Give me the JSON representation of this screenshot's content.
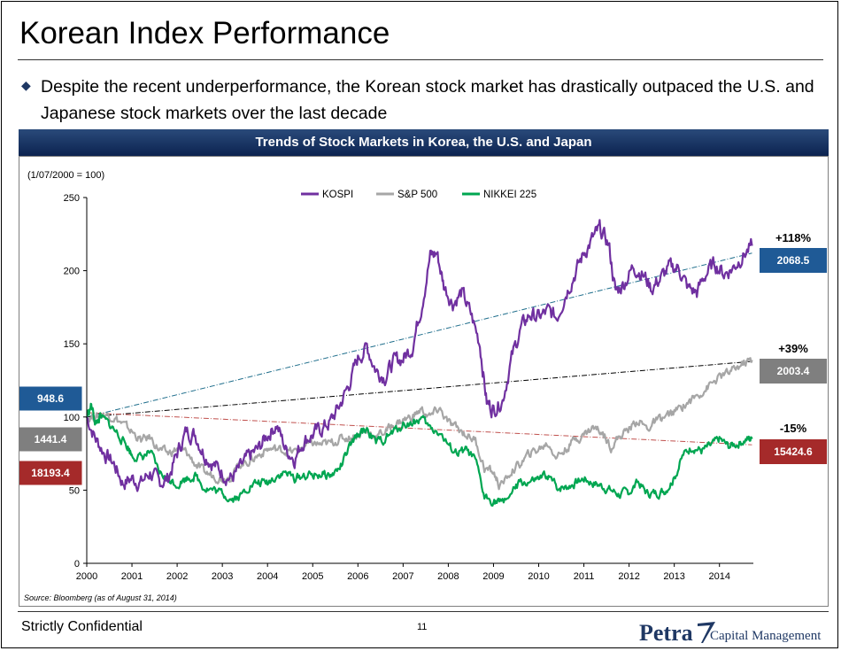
{
  "page": {
    "title": "Korean Index Performance",
    "bullet": "Despite the recent underperformance, the Korean stock market has drastically outpaced the U.S. and Japanese stock markets over the last decade",
    "banner": "Trends of Stock Markets in Korea, the U.S. and Japan",
    "footer": "Strictly Confidential",
    "page_number": "11",
    "logo_main": "Petra",
    "logo_sub": "Capital Management"
  },
  "chart_data": {
    "type": "line",
    "title": "Trends of Stock Markets in Korea, the U.S. and Japan",
    "ylabel": "(1/07/2000 = 100)",
    "source": "Source: Bloomberg (as of August 31, 2014)",
    "ylim": [
      0,
      250
    ],
    "yticks": [
      "0",
      "50",
      "100",
      "150",
      "200",
      "250"
    ],
    "xlim": [
      2000,
      2014.75
    ],
    "xticks": [
      "2000",
      "2001",
      "2002",
      "2003",
      "2004",
      "2005",
      "2006",
      "2007",
      "2008",
      "2009",
      "2010",
      "2011",
      "2012",
      "2013",
      "2014"
    ],
    "series": [
      {
        "name": "KOSPI",
        "color": "#7030a0",
        "start_value": "948.6",
        "end_value": "2068.5",
        "change": "+118%",
        "points": [
          [
            2000.0,
            100
          ],
          [
            2000.2,
            85
          ],
          [
            2000.4,
            75
          ],
          [
            2000.6,
            68
          ],
          [
            2000.8,
            55
          ],
          [
            2001.0,
            58
          ],
          [
            2001.2,
            55
          ],
          [
            2001.4,
            62
          ],
          [
            2001.6,
            55
          ],
          [
            2001.8,
            58
          ],
          [
            2002.0,
            75
          ],
          [
            2002.2,
            90
          ],
          [
            2002.4,
            88
          ],
          [
            2002.6,
            75
          ],
          [
            2002.8,
            68
          ],
          [
            2003.0,
            62
          ],
          [
            2003.2,
            58
          ],
          [
            2003.4,
            65
          ],
          [
            2003.6,
            73
          ],
          [
            2003.8,
            78
          ],
          [
            2004.0,
            88
          ],
          [
            2004.2,
            95
          ],
          [
            2004.4,
            78
          ],
          [
            2004.6,
            72
          ],
          [
            2004.8,
            84
          ],
          [
            2005.0,
            88
          ],
          [
            2005.2,
            92
          ],
          [
            2005.4,
            97
          ],
          [
            2005.6,
            108
          ],
          [
            2005.8,
            122
          ],
          [
            2006.0,
            140
          ],
          [
            2006.2,
            148
          ],
          [
            2006.4,
            132
          ],
          [
            2006.6,
            128
          ],
          [
            2006.8,
            138
          ],
          [
            2007.0,
            140
          ],
          [
            2007.2,
            148
          ],
          [
            2007.4,
            175
          ],
          [
            2007.6,
            210
          ],
          [
            2007.75,
            212
          ],
          [
            2007.9,
            190
          ],
          [
            2008.1,
            178
          ],
          [
            2008.3,
            185
          ],
          [
            2008.5,
            170
          ],
          [
            2008.7,
            150
          ],
          [
            2008.85,
            110
          ],
          [
            2009.0,
            105
          ],
          [
            2009.2,
            112
          ],
          [
            2009.4,
            140
          ],
          [
            2009.6,
            160
          ],
          [
            2009.8,
            170
          ],
          [
            2010.0,
            168
          ],
          [
            2010.2,
            172
          ],
          [
            2010.4,
            168
          ],
          [
            2010.6,
            185
          ],
          [
            2010.8,
            198
          ],
          [
            2011.0,
            212
          ],
          [
            2011.2,
            222
          ],
          [
            2011.35,
            228
          ],
          [
            2011.55,
            218
          ],
          [
            2011.7,
            185
          ],
          [
            2011.9,
            192
          ],
          [
            2012.1,
            203
          ],
          [
            2012.3,
            198
          ],
          [
            2012.5,
            188
          ],
          [
            2012.7,
            195
          ],
          [
            2012.9,
            202
          ],
          [
            2013.1,
            202
          ],
          [
            2013.3,
            188
          ],
          [
            2013.5,
            185
          ],
          [
            2013.7,
            198
          ],
          [
            2013.9,
            205
          ],
          [
            2014.1,
            198
          ],
          [
            2014.3,
            202
          ],
          [
            2014.5,
            210
          ],
          [
            2014.72,
            217
          ]
        ]
      },
      {
        "name": "S&P 500",
        "color": "#a6a6a6",
        "start_value": "1441.4",
        "end_value": "2003.4",
        "change": "+39%",
        "points": [
          [
            2000.0,
            100
          ],
          [
            2000.2,
            100
          ],
          [
            2000.4,
            102
          ],
          [
            2000.6,
            100
          ],
          [
            2000.8,
            95
          ],
          [
            2001.0,
            90
          ],
          [
            2001.2,
            84
          ],
          [
            2001.4,
            86
          ],
          [
            2001.6,
            78
          ],
          [
            2001.8,
            75
          ],
          [
            2002.0,
            78
          ],
          [
            2002.2,
            76
          ],
          [
            2002.4,
            68
          ],
          [
            2002.6,
            62
          ],
          [
            2002.8,
            60
          ],
          [
            2003.0,
            58
          ],
          [
            2003.2,
            60
          ],
          [
            2003.4,
            68
          ],
          [
            2003.6,
            70
          ],
          [
            2003.8,
            74
          ],
          [
            2004.0,
            78
          ],
          [
            2004.2,
            78
          ],
          [
            2004.4,
            77
          ],
          [
            2004.6,
            76
          ],
          [
            2004.8,
            80
          ],
          [
            2005.0,
            82
          ],
          [
            2005.2,
            81
          ],
          [
            2005.4,
            82
          ],
          [
            2005.6,
            85
          ],
          [
            2005.8,
            86
          ],
          [
            2006.0,
            88
          ],
          [
            2006.2,
            90
          ],
          [
            2006.4,
            87
          ],
          [
            2006.6,
            90
          ],
          [
            2006.8,
            95
          ],
          [
            2007.0,
            98
          ],
          [
            2007.2,
            100
          ],
          [
            2007.4,
            105
          ],
          [
            2007.6,
            100
          ],
          [
            2007.8,
            106
          ],
          [
            2008.0,
            96
          ],
          [
            2008.2,
            92
          ],
          [
            2008.4,
            88
          ],
          [
            2008.6,
            84
          ],
          [
            2008.8,
            65
          ],
          [
            2009.0,
            62
          ],
          [
            2009.15,
            52
          ],
          [
            2009.4,
            63
          ],
          [
            2009.6,
            68
          ],
          [
            2009.8,
            75
          ],
          [
            2010.0,
            78
          ],
          [
            2010.2,
            82
          ],
          [
            2010.4,
            73
          ],
          [
            2010.6,
            78
          ],
          [
            2010.8,
            85
          ],
          [
            2011.0,
            88
          ],
          [
            2011.2,
            93
          ],
          [
            2011.4,
            90
          ],
          [
            2011.6,
            80
          ],
          [
            2011.8,
            87
          ],
          [
            2012.0,
            92
          ],
          [
            2012.2,
            98
          ],
          [
            2012.4,
            92
          ],
          [
            2012.6,
            97
          ],
          [
            2012.8,
            100
          ],
          [
            2013.0,
            103
          ],
          [
            2013.2,
            108
          ],
          [
            2013.4,
            112
          ],
          [
            2013.6,
            117
          ],
          [
            2013.8,
            122
          ],
          [
            2014.0,
            127
          ],
          [
            2014.2,
            130
          ],
          [
            2014.4,
            134
          ],
          [
            2014.6,
            138
          ],
          [
            2014.72,
            139
          ]
        ]
      },
      {
        "name": "NIKKEI 225",
        "color": "#00a651",
        "start_value": "18193.4",
        "end_value": "15424.6",
        "change": "-15%",
        "points": [
          [
            2000.0,
            100
          ],
          [
            2000.1,
            108
          ],
          [
            2000.2,
            95
          ],
          [
            2000.3,
            100
          ],
          [
            2000.5,
            95
          ],
          [
            2000.7,
            88
          ],
          [
            2000.9,
            80
          ],
          [
            2001.0,
            74
          ],
          [
            2001.2,
            72
          ],
          [
            2001.4,
            76
          ],
          [
            2001.6,
            62
          ],
          [
            2001.8,
            58
          ],
          [
            2002.0,
            54
          ],
          [
            2002.2,
            58
          ],
          [
            2002.4,
            60
          ],
          [
            2002.6,
            52
          ],
          [
            2002.8,
            50
          ],
          [
            2003.0,
            48
          ],
          [
            2003.2,
            44
          ],
          [
            2003.4,
            46
          ],
          [
            2003.6,
            53
          ],
          [
            2003.8,
            55
          ],
          [
            2004.0,
            55
          ],
          [
            2004.2,
            60
          ],
          [
            2004.4,
            62
          ],
          [
            2004.6,
            58
          ],
          [
            2004.8,
            60
          ],
          [
            2005.0,
            60
          ],
          [
            2005.2,
            61
          ],
          [
            2005.4,
            60
          ],
          [
            2005.6,
            65
          ],
          [
            2005.8,
            78
          ],
          [
            2006.0,
            88
          ],
          [
            2006.2,
            92
          ],
          [
            2006.4,
            82
          ],
          [
            2006.6,
            85
          ],
          [
            2006.8,
            90
          ],
          [
            2007.0,
            95
          ],
          [
            2007.2,
            96
          ],
          [
            2007.4,
            99
          ],
          [
            2007.6,
            92
          ],
          [
            2007.8,
            90
          ],
          [
            2008.0,
            80
          ],
          [
            2008.2,
            75
          ],
          [
            2008.4,
            77
          ],
          [
            2008.6,
            70
          ],
          [
            2008.8,
            45
          ],
          [
            2009.0,
            43
          ],
          [
            2009.15,
            41
          ],
          [
            2009.4,
            48
          ],
          [
            2009.6,
            55
          ],
          [
            2009.8,
            55
          ],
          [
            2010.0,
            57
          ],
          [
            2010.2,
            60
          ],
          [
            2010.4,
            52
          ],
          [
            2010.6,
            52
          ],
          [
            2010.8,
            55
          ],
          [
            2011.0,
            58
          ],
          [
            2011.2,
            55
          ],
          [
            2011.4,
            53
          ],
          [
            2011.6,
            50
          ],
          [
            2011.8,
            47
          ],
          [
            2012.0,
            49
          ],
          [
            2012.2,
            55
          ],
          [
            2012.4,
            48
          ],
          [
            2012.6,
            48
          ],
          [
            2012.8,
            50
          ],
          [
            2013.0,
            58
          ],
          [
            2013.2,
            74
          ],
          [
            2013.4,
            80
          ],
          [
            2013.6,
            77
          ],
          [
            2013.8,
            80
          ],
          [
            2014.0,
            85
          ],
          [
            2014.2,
            80
          ],
          [
            2014.4,
            82
          ],
          [
            2014.6,
            85
          ],
          [
            2014.72,
            85
          ]
        ]
      }
    ],
    "trendlines": [
      {
        "series": "KOSPI",
        "color": "#1f6e8c",
        "from": [
          2000,
          100
        ],
        "to": [
          2014.72,
          212
        ]
      },
      {
        "series": "S&P 500",
        "color": "#000000",
        "from": [
          2000,
          100
        ],
        "to": [
          2014.72,
          138
        ]
      },
      {
        "series": "NIKKEI 225",
        "color": "#c0504d",
        "from": [
          2000,
          103
        ],
        "to": [
          2014.72,
          81
        ]
      }
    ],
    "value_box_colors": {
      "KOSPI": "#1f5a96",
      "S&P 500": "#7f7f7f",
      "NIKKEI 225": "#a52a2a"
    }
  }
}
